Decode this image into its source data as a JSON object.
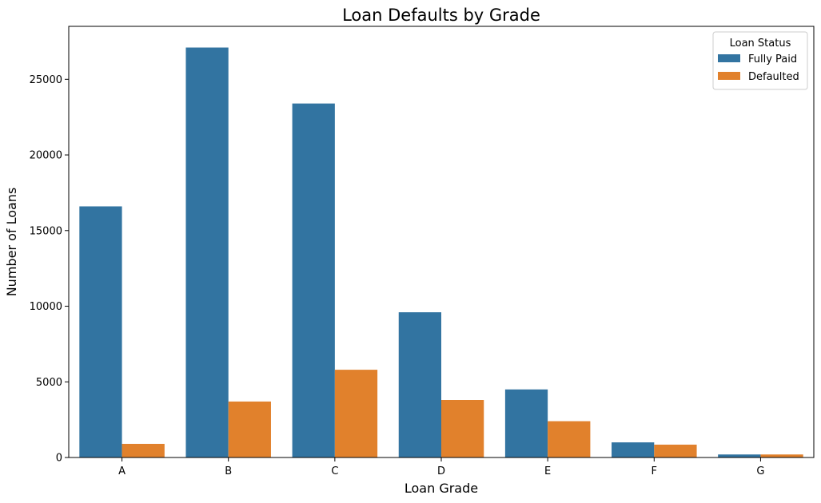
{
  "chart_data": {
    "type": "bar",
    "title": "Loan Defaults by Grade",
    "xlabel": "Loan Grade",
    "ylabel": "Number of Loans",
    "categories": [
      "A",
      "B",
      "C",
      "D",
      "E",
      "F",
      "G"
    ],
    "series": [
      {
        "name": "Fully Paid",
        "color": "#3274a1",
        "values": [
          16600,
          27100,
          23400,
          9600,
          4500,
          1000,
          200
        ]
      },
      {
        "name": "Defaulted",
        "color": "#e1812c",
        "values": [
          900,
          3700,
          5800,
          3800,
          2400,
          850,
          200
        ]
      }
    ],
    "ylim": [
      0,
      28500
    ],
    "yticks": [
      0,
      5000,
      10000,
      15000,
      20000,
      25000
    ],
    "legend": {
      "title": "Loan Status",
      "placement": "top-right"
    },
    "grid": false
  }
}
